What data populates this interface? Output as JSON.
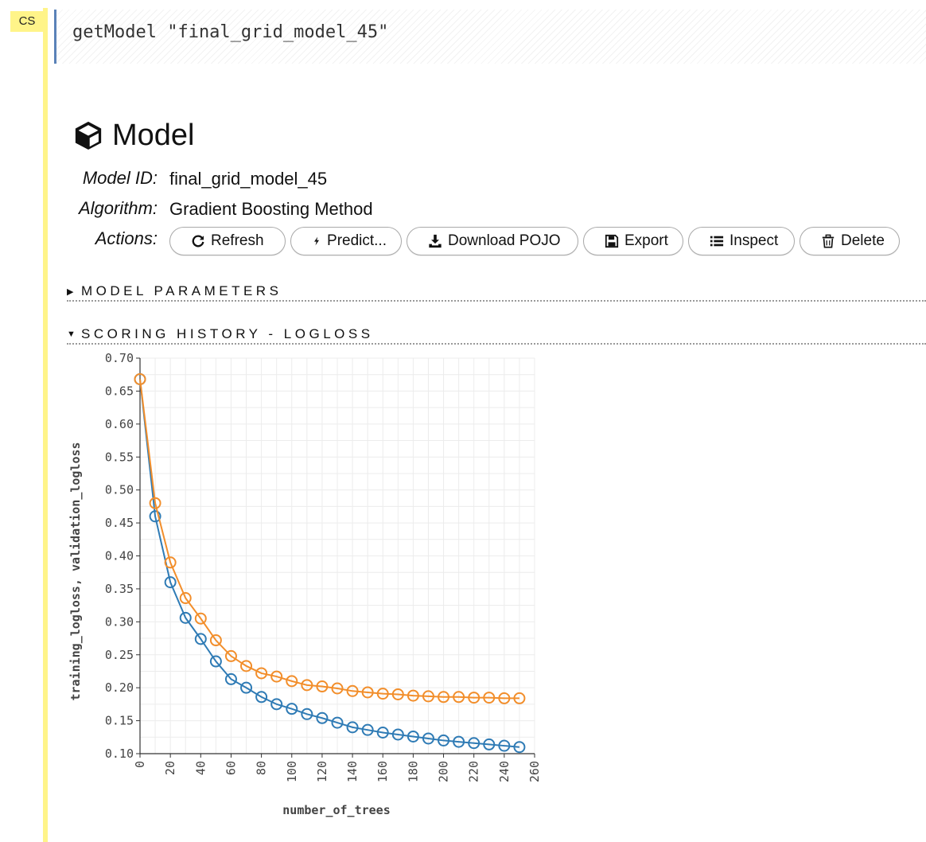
{
  "cell": {
    "type_label": "CS",
    "code": "getModel \"final_grid_model_45\""
  },
  "model": {
    "title": "Model",
    "title_icon": "cube-icon",
    "fields": [
      {
        "label": "Model ID:",
        "value": "final_grid_model_45"
      },
      {
        "label": "Algorithm:",
        "value": "Gradient Boosting Method"
      }
    ],
    "actions_label": "Actions:",
    "actions": [
      {
        "label": "Refresh",
        "icon": "refresh-icon"
      },
      {
        "label": "Predict...",
        "icon": "bolt-icon"
      },
      {
        "label": "Download POJO",
        "icon": "download-icon"
      },
      {
        "label": "Export",
        "icon": "save-icon"
      },
      {
        "label": "Inspect",
        "icon": "list-icon"
      },
      {
        "label": "Delete",
        "icon": "trash-icon"
      }
    ]
  },
  "sections": {
    "parameters": {
      "label": "MODEL PARAMETERS",
      "expanded": false
    },
    "scoring": {
      "label": "SCORING HISTORY - LOGLOSS",
      "expanded": true
    }
  },
  "chart_data": {
    "type": "line",
    "title": "",
    "xlabel": "number_of_trees",
    "ylabel": "training_logloss, validation_logloss",
    "xlim": [
      0,
      260
    ],
    "ylim": [
      0.1,
      0.7
    ],
    "xticks": [
      "0",
      "20",
      "40",
      "60",
      "80",
      "100",
      "120",
      "140",
      "160",
      "180",
      "200",
      "220",
      "240",
      "260"
    ],
    "yticks": [
      "0.10",
      "0.15",
      "0.20",
      "0.25",
      "0.30",
      "0.35",
      "0.40",
      "0.45",
      "0.50",
      "0.55",
      "0.60",
      "0.65",
      "0.70"
    ],
    "grid": true,
    "x": [
      0,
      10,
      20,
      30,
      40,
      50,
      60,
      70,
      80,
      90,
      100,
      110,
      120,
      130,
      140,
      150,
      160,
      170,
      180,
      190,
      200,
      210,
      220,
      230,
      240,
      250
    ],
    "series": [
      {
        "name": "training_logloss",
        "color": "#2f7bb5",
        "values": [
          0.668,
          0.46,
          0.36,
          0.306,
          0.274,
          0.24,
          0.213,
          0.2,
          0.186,
          0.175,
          0.168,
          0.16,
          0.154,
          0.147,
          0.14,
          0.136,
          0.132,
          0.129,
          0.126,
          0.123,
          0.12,
          0.118,
          0.116,
          0.114,
          0.112,
          0.11
        ]
      },
      {
        "name": "validation_logloss",
        "color": "#f28e2b",
        "values": [
          0.668,
          0.48,
          0.39,
          0.336,
          0.305,
          0.272,
          0.248,
          0.233,
          0.222,
          0.217,
          0.21,
          0.204,
          0.202,
          0.199,
          0.195,
          0.193,
          0.191,
          0.19,
          0.188,
          0.187,
          0.186,
          0.186,
          0.185,
          0.185,
          0.184,
          0.184
        ]
      }
    ]
  }
}
